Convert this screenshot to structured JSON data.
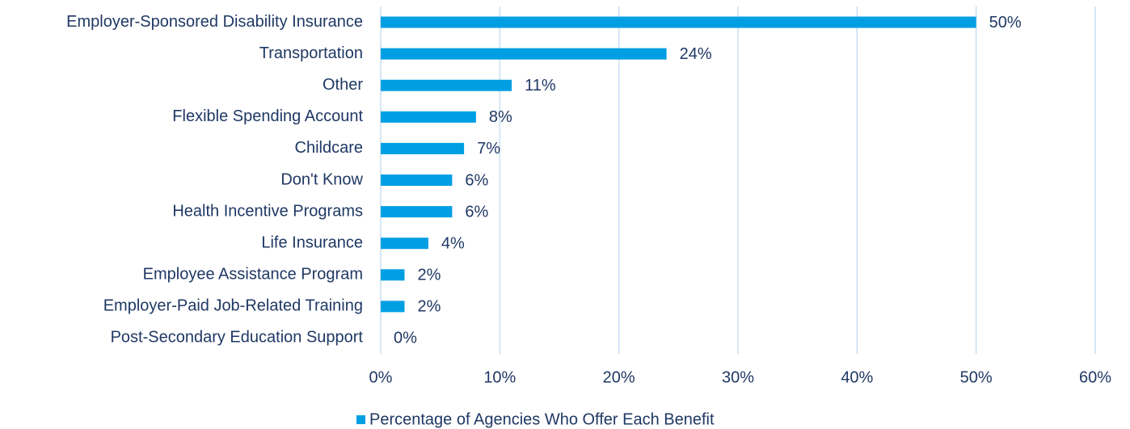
{
  "chart_data": {
    "type": "bar",
    "orientation": "horizontal",
    "categories": [
      "Employer-Sponsored Disability Insurance",
      "Transportation",
      "Other",
      "Flexible Spending Account",
      "Childcare",
      "Don't Know",
      "Health Incentive Programs",
      "Life Insurance",
      "Employee Assistance Program",
      "Employer-Paid Job-Related Training",
      "Post-Secondary Education Support"
    ],
    "series": [
      {
        "name": "Percentage of Agencies Who Offer Each Benefit",
        "color": "#009fe3",
        "values": [
          50,
          24,
          11,
          8,
          7,
          6,
          6,
          4,
          2,
          2,
          0
        ],
        "value_labels": [
          "50%",
          "24%",
          "11%",
          "8%",
          "7%",
          "6%",
          "6%",
          "4%",
          "2%",
          "2%",
          "0%"
        ]
      }
    ],
    "xlim": [
      0,
      60
    ],
    "xticks": [
      {
        "value": 0,
        "label": "0%"
      },
      {
        "value": 10,
        "label": "10%"
      },
      {
        "value": 20,
        "label": "20%"
      },
      {
        "value": 30,
        "label": "30%"
      },
      {
        "value": 40,
        "label": "40%"
      },
      {
        "value": 50,
        "label": "50%"
      },
      {
        "value": 60,
        "label": "60%"
      }
    ],
    "grid": true,
    "legend": "bottom"
  }
}
